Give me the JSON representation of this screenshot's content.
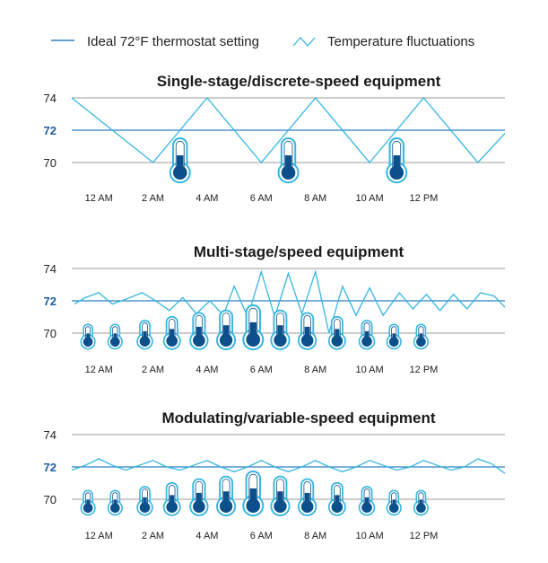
{
  "colors": {
    "ideal": "#2f7fc1",
    "fluctuation": "#35b6e0",
    "grid": "#9a9a9a",
    "thermo_fill": "#0d4f8b",
    "thermo_stroke": "#35b6e0",
    "highlight_tick": "#1d5fa3"
  },
  "legend": {
    "ideal_label": "Ideal 72°F thermostat setting",
    "fluctuation_label": "Temperature fluctuations"
  },
  "chart_data": [
    {
      "type": "line",
      "title": "Single-stage/discrete-speed equipment",
      "x_ticks": [
        "12 AM",
        "2 AM",
        "4 AM",
        "6 AM",
        "8 AM",
        "10 AM",
        "12 PM"
      ],
      "y_ticks": [
        74,
        72,
        70
      ],
      "highlight_y": 72,
      "ideal_setting": 72,
      "xlim": [
        -1,
        15
      ],
      "ylim": [
        69.6,
        74.4
      ],
      "series": [
        {
          "name": "Temperature fluctuations",
          "x": [
            -1,
            2,
            4,
            6,
            8,
            10,
            12,
            14,
            15
          ],
          "y": [
            74,
            70,
            74,
            70,
            74,
            70,
            74,
            70,
            71.8
          ]
        }
      ],
      "thermometers": [
        {
          "x": 3,
          "level": 1.0
        },
        {
          "x": 7,
          "level": 1.0
        },
        {
          "x": 11,
          "level": 1.0
        }
      ]
    },
    {
      "type": "line",
      "title": "Multi-stage/speed equipment",
      "x_ticks": [
        "12 AM",
        "2 AM",
        "4 AM",
        "6 AM",
        "8 AM",
        "10 AM",
        "12 PM"
      ],
      "y_ticks": [
        74,
        72,
        70
      ],
      "highlight_y": 72,
      "ideal_setting": 72,
      "xlim": [
        -1,
        15
      ],
      "ylim": [
        69.6,
        74.4
      ],
      "series": [
        {
          "name": "Temperature fluctuations",
          "x": [
            -0.9,
            -0.5,
            0,
            0.5,
            1,
            1.6,
            2.1,
            2.6,
            3.1,
            3.6,
            4.1,
            4.6,
            5.0,
            5.5,
            6.0,
            6.5,
            7.0,
            7.5,
            8.0,
            8.5,
            9.0,
            9.5,
            10.0,
            10.5,
            11.1,
            11.6,
            12.1,
            12.6,
            13.1,
            13.6,
            14.1,
            14.6,
            15.0
          ],
          "y": [
            71.8,
            72.2,
            72.5,
            71.8,
            72.1,
            72.5,
            72.0,
            71.4,
            72.2,
            71.2,
            72.0,
            71.1,
            72.9,
            71.0,
            73.8,
            71.0,
            73.7,
            71.2,
            73.8,
            70.0,
            72.9,
            71.1,
            72.8,
            71.1,
            72.5,
            71.5,
            72.4,
            71.4,
            72.4,
            71.5,
            72.5,
            72.3,
            71.6
          ]
        }
      ],
      "thermometers": [
        {
          "x": -0.4,
          "level": 0.25
        },
        {
          "x": 0.6,
          "level": 0.25
        },
        {
          "x": 1.7,
          "level": 0.4
        },
        {
          "x": 2.7,
          "level": 0.55
        },
        {
          "x": 3.7,
          "level": 0.7
        },
        {
          "x": 4.7,
          "level": 0.8
        },
        {
          "x": 5.7,
          "level": 1.0
        },
        {
          "x": 6.7,
          "level": 0.8
        },
        {
          "x": 7.7,
          "level": 0.7
        },
        {
          "x": 8.8,
          "level": 0.55
        },
        {
          "x": 9.9,
          "level": 0.4
        },
        {
          "x": 10.9,
          "level": 0.25
        },
        {
          "x": 11.9,
          "level": 0.25
        }
      ]
    },
    {
      "type": "line",
      "title": "Modulating/variable-speed equipment",
      "x_ticks": [
        "12 AM",
        "2 AM",
        "4 AM",
        "6 AM",
        "8 AM",
        "10 AM",
        "12 PM"
      ],
      "y_ticks": [
        74,
        72,
        70
      ],
      "highlight_y": 72,
      "ideal_setting": 72,
      "xlim": [
        -1,
        15
      ],
      "ylim": [
        69.6,
        74.4
      ],
      "series": [
        {
          "name": "Temperature fluctuations",
          "x": [
            -1,
            -0.5,
            0,
            0.5,
            1,
            1.5,
            2,
            2.5,
            3,
            3.5,
            4,
            4.5,
            5,
            5.5,
            6,
            6.5,
            7,
            7.5,
            8,
            8.5,
            9,
            9.5,
            10,
            10.5,
            11,
            11.5,
            12,
            12.5,
            13,
            13.5,
            14,
            14.5,
            15
          ],
          "y": [
            71.8,
            72.1,
            72.5,
            72.1,
            71.8,
            72.1,
            72.4,
            72.0,
            71.8,
            72.1,
            72.4,
            72.0,
            71.7,
            72.0,
            72.4,
            72.0,
            71.7,
            72.0,
            72.4,
            72.0,
            71.7,
            72.0,
            72.4,
            72.1,
            71.8,
            72.0,
            72.4,
            72.1,
            71.8,
            72.0,
            72.5,
            72.2,
            71.6
          ]
        }
      ],
      "thermometers": [
        {
          "x": -0.4,
          "level": 0.25
        },
        {
          "x": 0.6,
          "level": 0.25
        },
        {
          "x": 1.7,
          "level": 0.4
        },
        {
          "x": 2.7,
          "level": 0.55
        },
        {
          "x": 3.7,
          "level": 0.7
        },
        {
          "x": 4.7,
          "level": 0.8
        },
        {
          "x": 5.7,
          "level": 1.0
        },
        {
          "x": 6.7,
          "level": 0.8
        },
        {
          "x": 7.7,
          "level": 0.7
        },
        {
          "x": 8.8,
          "level": 0.55
        },
        {
          "x": 9.9,
          "level": 0.4
        },
        {
          "x": 10.9,
          "level": 0.25
        },
        {
          "x": 11.9,
          "level": 0.25
        }
      ]
    }
  ]
}
